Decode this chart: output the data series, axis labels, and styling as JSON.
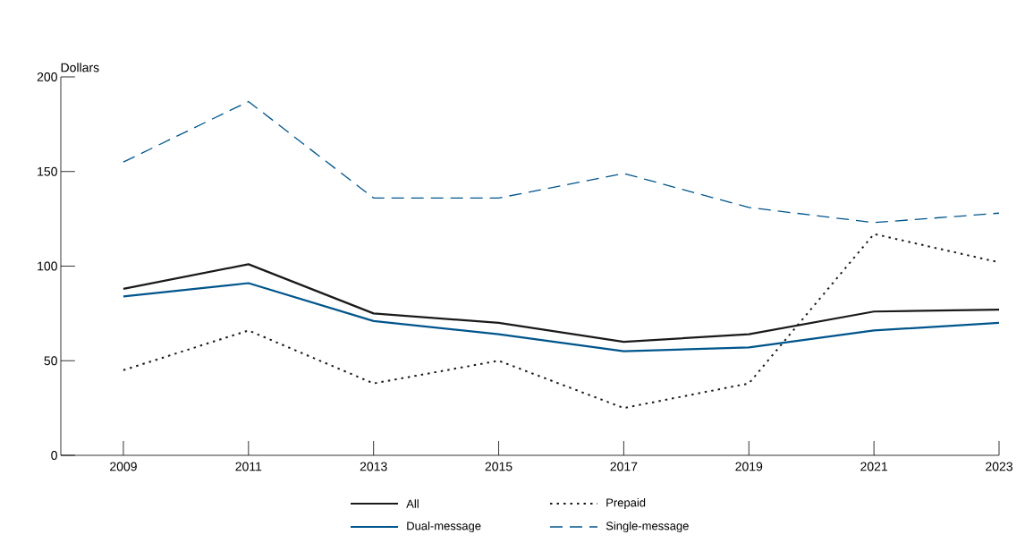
{
  "chart_data": {
    "type": "line",
    "ylabel": "Dollars",
    "x": [
      2009,
      2011,
      2013,
      2015,
      2017,
      2019,
      2021,
      2023
    ],
    "xlim": [
      2008,
      2023
    ],
    "xticks": [
      2009,
      2011,
      2013,
      2015,
      2017,
      2019,
      2021,
      2023
    ],
    "ylim": [
      0,
      200
    ],
    "yticks": [
      0,
      50,
      100,
      150,
      200
    ],
    "grid": false,
    "legend": "bottom",
    "marker": "none",
    "series": [
      {
        "name": "All",
        "color": "#1a1a1a",
        "line_style": "solid",
        "values": [
          88,
          101,
          75,
          70,
          60,
          64,
          76,
          77
        ]
      },
      {
        "name": "Prepaid",
        "color": "#1a1a1a",
        "line_style": "dotted",
        "values": [
          45,
          66,
          38,
          50,
          25,
          38,
          117,
          102
        ]
      },
      {
        "name": "Dual-message",
        "color": "#00558c",
        "line_style": "solid",
        "values": [
          84,
          91,
          71,
          64,
          55,
          57,
          66,
          70
        ]
      },
      {
        "name": "Single-message",
        "color": "#00558c",
        "line_style": "dashed",
        "values": [
          155,
          187,
          136,
          136,
          149,
          131,
          123,
          128
        ]
      }
    ]
  }
}
